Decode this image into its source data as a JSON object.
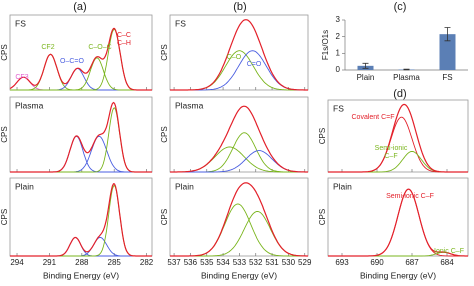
{
  "chart_data": [
    {
      "type": "spectra",
      "title": "(a)",
      "xlabel": "Binding Energy (eV)",
      "ylabel": "CPS",
      "xlim": [
        294.65,
        281.5
      ],
      "xticks": [
        294,
        291,
        288,
        285,
        282
      ],
      "ylim": [
        0,
        1.05
      ],
      "envelope_color": "#e3202a",
      "subplots": [
        {
          "title": "FS",
          "components": [
            {
              "center": 293.4,
              "height": 0.18,
              "width": 0.6,
              "color": "#e060d0"
            },
            {
              "center": 290.9,
              "height": 0.5,
              "width": 0.6,
              "color": "#7ab51d"
            },
            {
              "center": 288.4,
              "height": 0.3,
              "width": 0.6,
              "color": "#4a5ee0"
            },
            {
              "center": 286.6,
              "height": 0.45,
              "width": 0.6,
              "color": "#7ab51d"
            },
            {
              "center": 285.0,
              "height": 0.85,
              "width": 0.55,
              "color": "#7ab51d"
            }
          ],
          "annotations": [
            {
              "text": "CF3",
              "color": "#e060d0"
            },
            {
              "text": "CF2",
              "color": "#7ab51d"
            },
            {
              "text": "O–C=O",
              "color": "#4a5ee0"
            },
            {
              "text": "C–O–C",
              "color": "#7ab51d"
            },
            {
              "text": "C–C",
              "color": "#e3202a"
            },
            {
              "text": "C–H",
              "color": "#e3202a"
            }
          ]
        },
        {
          "title": "Plasma",
          "components": [
            {
              "center": 288.5,
              "height": 0.5,
              "width": 0.6,
              "color": "#4a5ee0"
            },
            {
              "center": 286.4,
              "height": 0.5,
              "width": 0.7,
              "color": "#4a5ee0"
            },
            {
              "center": 285.0,
              "height": 0.9,
              "width": 0.5,
              "color": "#7ab51d"
            }
          ],
          "annotations": []
        },
        {
          "title": "Plain",
          "components": [
            {
              "center": 288.6,
              "height": 0.25,
              "width": 0.5,
              "color": "#4a5ee0"
            },
            {
              "center": 286.3,
              "height": 0.25,
              "width": 0.6,
              "color": "#4a5ee0"
            },
            {
              "center": 285.0,
              "height": 0.95,
              "width": 0.5,
              "color": "#7ab51d"
            }
          ],
          "annotations": []
        }
      ]
    },
    {
      "type": "spectra",
      "title": "(b)",
      "xlabel": "Binding Energy (eV)",
      "ylabel": "CPS",
      "xlim": [
        537.25,
        528.8
      ],
      "xticks": [
        537,
        536,
        535,
        534,
        533,
        532,
        531,
        530,
        529
      ],
      "ylim": [
        0,
        1.05
      ],
      "envelope_color": "#e3202a",
      "subplots": [
        {
          "title": "FS",
          "components": [
            {
              "center": 533.0,
              "height": 0.55,
              "width": 0.85,
              "color": "#7ab51d"
            },
            {
              "center": 532.2,
              "height": 0.55,
              "width": 0.85,
              "color": "#4a5ee0"
            }
          ],
          "annotations": [
            {
              "text": "C–O",
              "color": "#7ab51d"
            },
            {
              "text": "C=O",
              "color": "#4a5ee0"
            }
          ]
        },
        {
          "title": "Plasma",
          "components": [
            {
              "center": 533.6,
              "height": 0.35,
              "width": 0.9,
              "color": "#7ab51d"
            },
            {
              "center": 532.7,
              "height": 0.55,
              "width": 0.7,
              "color": "#7ab51d"
            },
            {
              "center": 531.8,
              "height": 0.3,
              "width": 0.8,
              "color": "#4a5ee0"
            }
          ],
          "annotations": []
        },
        {
          "title": "Plain",
          "components": [
            {
              "center": 533.1,
              "height": 0.7,
              "width": 0.8,
              "color": "#7ab51d"
            },
            {
              "center": 531.9,
              "height": 0.6,
              "width": 0.8,
              "color": "#7ab51d"
            }
          ],
          "annotations": []
        }
      ]
    },
    {
      "type": "bar",
      "title": "(c)",
      "ylabel": "F1s/O1s",
      "categories": [
        "Plain",
        "Plasma",
        "FS"
      ],
      "values": [
        0.25,
        0.03,
        2.15
      ],
      "errors": [
        0.15,
        0.02,
        0.4
      ],
      "color": "#5b7fb5",
      "ylim": [
        0,
        3
      ],
      "yticks": [
        0,
        1,
        2,
        3
      ]
    },
    {
      "type": "spectra",
      "title": "(d)",
      "xlabel": "Binding Energy (eV)",
      "ylabel": "CPS",
      "xlim": [
        694.2,
        682.2
      ],
      "xticks": [
        693,
        690,
        687,
        684
      ],
      "ylim": [
        0,
        1.05
      ],
      "envelope_color": "#e3202a",
      "subplots": [
        {
          "title": "FS",
          "components": [
            {
              "center": 687.9,
              "height": 0.8,
              "width": 0.9,
              "color": "#e3202a"
            },
            {
              "center": 687.0,
              "height": 0.3,
              "width": 0.8,
              "color": "#7ab51d"
            }
          ],
          "annotations": [
            {
              "text": "Covalent C=F",
              "color": "#e3202a"
            },
            {
              "text": "Semi-ionic",
              "color": "#7ab51d"
            },
            {
              "text": "C–F",
              "color": "#7ab51d"
            }
          ]
        },
        {
          "title": "Plain",
          "components": [
            {
              "center": 687.3,
              "height": 0.9,
              "width": 0.9,
              "color": "#e3202a"
            },
            {
              "center": 684.3,
              "height": 0.05,
              "width": 0.6,
              "color": "#7ab51d"
            }
          ],
          "annotations": [
            {
              "text": "Semi-ionic C–F",
              "color": "#e3202a"
            },
            {
              "text": "Ionic C–F",
              "color": "#7ab51d"
            }
          ]
        }
      ]
    }
  ]
}
